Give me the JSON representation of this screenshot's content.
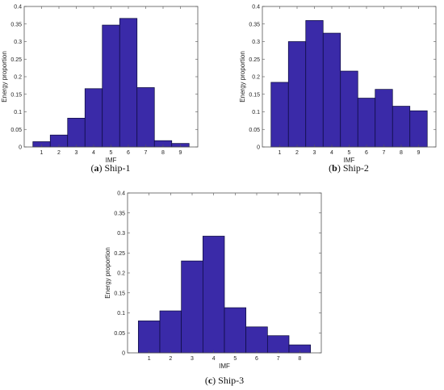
{
  "figure": {
    "captions": [
      {
        "letter": "a",
        "text": "Ship-1"
      },
      {
        "letter": "b",
        "text": "Ship-2"
      },
      {
        "letter": "c",
        "text": "Ship-3"
      }
    ]
  },
  "colors": {
    "bar_fill": "#3a2aa8",
    "bar_edge": "#0a0a3a",
    "frame": "#555555"
  },
  "chart_data": [
    {
      "type": "bar",
      "categories": [
        "1",
        "2",
        "3",
        "4",
        "5",
        "6",
        "7",
        "8",
        "9"
      ],
      "values": [
        0.015,
        0.034,
        0.082,
        0.166,
        0.347,
        0.366,
        0.169,
        0.018,
        0.01
      ],
      "title": "",
      "xlabel": "IMF",
      "ylabel": "Energy proportion",
      "ylim": [
        0,
        0.4
      ],
      "yticks": [
        "0",
        "0.05",
        "0.1",
        "0.15",
        "0.2",
        "0.25",
        "0.3",
        "0.35",
        "0.4"
      ],
      "grid": false
    },
    {
      "type": "bar",
      "categories": [
        "1",
        "2",
        "3",
        "4",
        "5",
        "6",
        "7",
        "8",
        "9"
      ],
      "values": [
        0.184,
        0.3,
        0.36,
        0.324,
        0.216,
        0.139,
        0.164,
        0.116,
        0.103
      ],
      "title": "",
      "xlabel": "IMF",
      "ylabel": "Energy proportion",
      "ylim": [
        0,
        0.4
      ],
      "yticks": [
        "0",
        "0.05",
        "0.1",
        "0.15",
        "0.2",
        "0.25",
        "0.3",
        "0.35",
        "0.4"
      ],
      "grid": false
    },
    {
      "type": "bar",
      "categories": [
        "1",
        "2",
        "3",
        "4",
        "5",
        "6",
        "7",
        "8"
      ],
      "values": [
        0.08,
        0.105,
        0.23,
        0.292,
        0.113,
        0.065,
        0.043,
        0.02
      ],
      "title": "",
      "xlabel": "IMF",
      "ylabel": "Energy proportion",
      "ylim": [
        0,
        0.4
      ],
      "yticks": [
        "0",
        "0.05",
        "0.1",
        "0.15",
        "0.2",
        "0.25",
        "0.3",
        "0.35",
        "0.4"
      ],
      "grid": false
    }
  ]
}
